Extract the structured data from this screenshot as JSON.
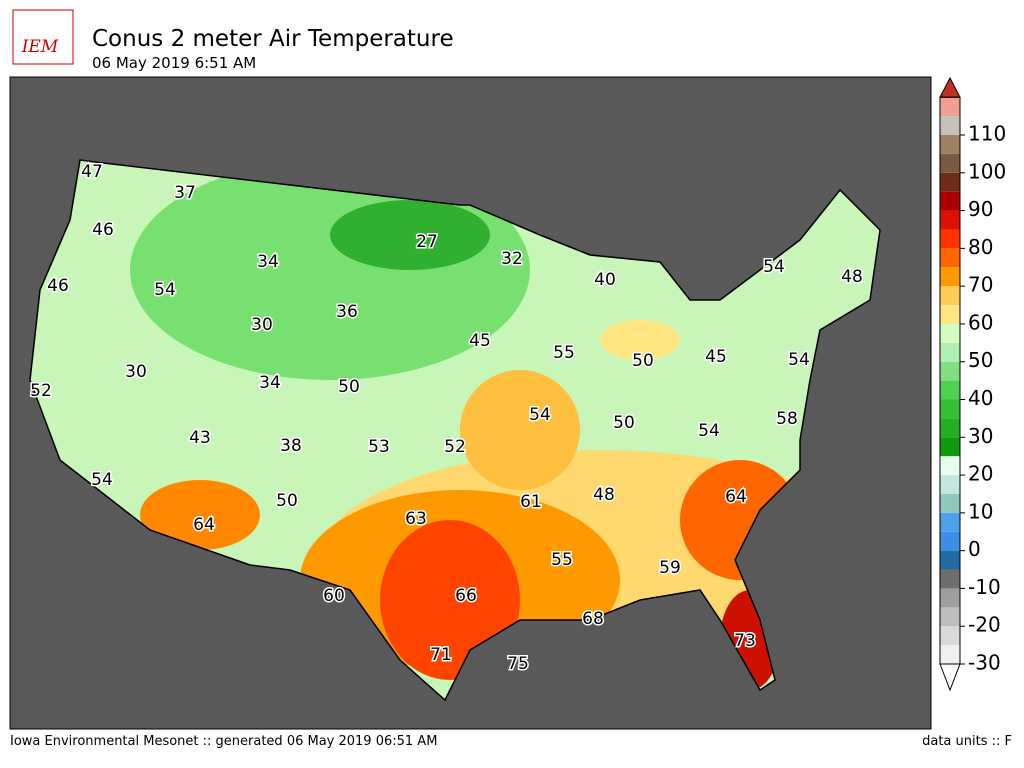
{
  "header": {
    "logo": "IEM",
    "title": "Conus 2 meter Air Temperature",
    "subtitle": "06 May 2019 6:51 AM"
  },
  "footer": {
    "left": "Iowa Environmental Mesonet :: generated 06 May 2019 06:51 AM",
    "right": "data units :: F"
  },
  "map": {
    "labels": [
      47,
      37,
      46,
      34,
      27,
      32,
      40,
      54,
      48,
      46,
      54,
      30,
      36,
      45,
      55,
      50,
      45,
      54,
      52,
      30,
      34,
      50,
      54,
      50,
      58,
      43,
      38,
      53,
      52,
      54,
      54,
      50,
      48,
      61,
      64,
      64,
      63,
      55,
      59,
      60,
      66,
      68,
      73,
      71,
      75
    ]
  },
  "colorbar": {
    "lim": [
      -30,
      120
    ],
    "ticks": [
      -30,
      -20,
      -10,
      0,
      10,
      20,
      30,
      40,
      50,
      60,
      70,
      80,
      90,
      100,
      110
    ],
    "colors": [
      "#f0f0f0",
      "#d9d9d9",
      "#bdbdbd",
      "#9e9e9e",
      "#6e6e6e",
      "#1f6aa5",
      "#3a8ee6",
      "#4ea0e8",
      "#90c8c0",
      "#c0e8e0",
      "#e8fff0",
      "#109a10",
      "#22b022",
      "#34c034",
      "#50d050",
      "#80e080",
      "#b0f0b0",
      "#d0ffc0",
      "#ffe680",
      "#ffcc55",
      "#ff9900",
      "#ff6600",
      "#ff3300",
      "#dd1100",
      "#aa0000",
      "#6e2c14",
      "#7a5a40",
      "#a08060",
      "#c8c0b8",
      "#f0a090"
    ]
  }
}
